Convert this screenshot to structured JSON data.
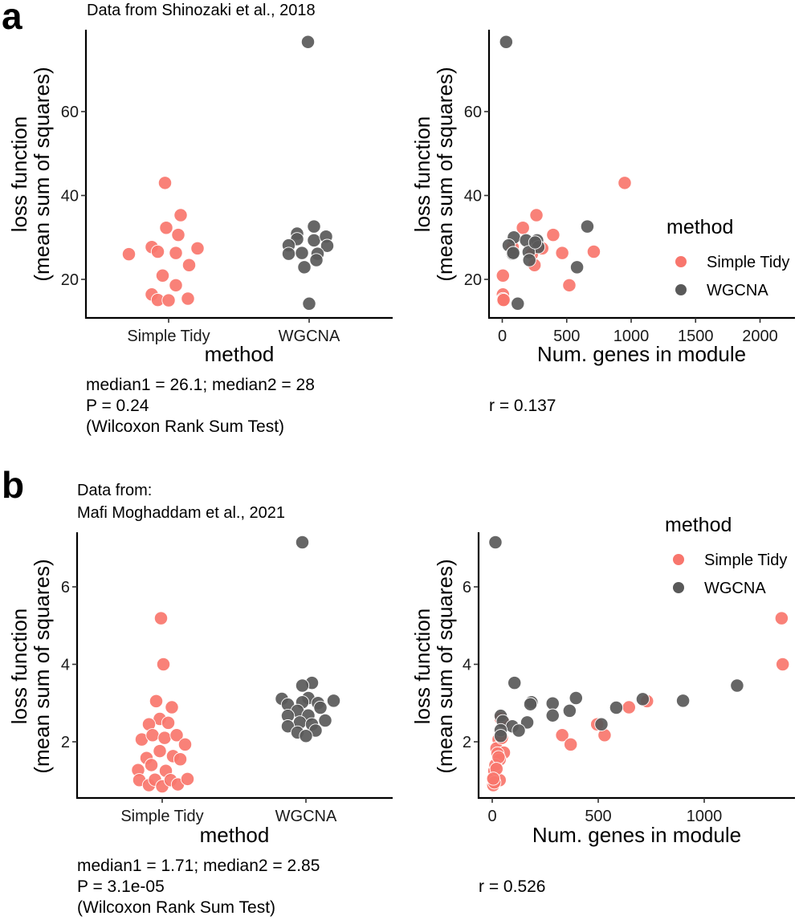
{
  "figure": {
    "panels": [
      {
        "letter": "a",
        "title_lines": [
          "Data from Shinozaki et al., 2018"
        ],
        "strip": {
          "xlabel": "method",
          "ylabel_lines": [
            "loss function",
            "(mean sum of squares)"
          ],
          "annotation_lines": [
            "median1 = 26.1; median2 = 28",
            "P = 0.24",
            "(Wilcoxon Rank Sum Test)"
          ]
        },
        "scatter": {
          "xlabel": "Num. genes in module",
          "ylabel_lines": [
            "loss function",
            "(mean sum of squares)"
          ],
          "annotation_lines": [
            "r = 0.137"
          ]
        },
        "legend": {
          "title": "method",
          "items": [
            "Simple Tidy",
            "WGCNA"
          ]
        }
      },
      {
        "letter": "b",
        "title_lines": [
          "Data from:",
          "Mafi Moghaddam et al., 2021"
        ],
        "strip": {
          "xlabel": "method",
          "ylabel_lines": [
            "loss function",
            "(mean sum of squares)"
          ],
          "annotation_lines": [
            "median1 = 1.71; median2 = 2.85",
            "P = 3.1e-05",
            "(Wilcoxon Rank Sum Test)"
          ]
        },
        "scatter": {
          "xlabel": "Num. genes in module",
          "ylabel_lines": [
            "loss function",
            "(mean sum of squares)"
          ],
          "annotation_lines": [
            "r = 0.526"
          ]
        },
        "legend": {
          "title": "method",
          "items": [
            "Simple Tidy",
            "WGCNA"
          ]
        }
      }
    ]
  },
  "colors": {
    "Simple Tidy": "#F8766D",
    "WGCNA": "#595959"
  },
  "chart_data": [
    {
      "id": "a-strip",
      "type": "scatter",
      "subtype": "jitter-strip",
      "title": "Data from Shinozaki et al., 2018",
      "xlabel": "method",
      "ylabel": "loss function (mean sum of squares)",
      "categories": [
        "Simple Tidy",
        "WGCNA"
      ],
      "yticks": [
        20,
        40,
        60
      ],
      "ylim": [
        11,
        81
      ],
      "grid": false,
      "series": [
        {
          "name": "Simple Tidy",
          "points": [
            {
              "jitter": -0.15,
              "y": 43.0
            },
            {
              "jitter": 0.5,
              "y": 35.3
            },
            {
              "jitter": -0.1,
              "y": 32.3
            },
            {
              "jitter": 0.4,
              "y": 30.6
            },
            {
              "jitter": -0.7,
              "y": 27.7
            },
            {
              "jitter": 1.2,
              "y": 27.4
            },
            {
              "jitter": -1.65,
              "y": 26.0
            },
            {
              "jitter": -0.45,
              "y": 26.6
            },
            {
              "jitter": 0.3,
              "y": 26.3
            },
            {
              "jitter": 0.85,
              "y": 23.4
            },
            {
              "jitter": -0.25,
              "y": 20.9
            },
            {
              "jitter": 0.3,
              "y": 18.6
            },
            {
              "jitter": -0.7,
              "y": 16.4
            },
            {
              "jitter": -0.45,
              "y": 15.1
            },
            {
              "jitter": 0.0,
              "y": 15.0
            },
            {
              "jitter": 0.8,
              "y": 15.4
            }
          ]
        },
        {
          "name": "WGCNA",
          "points": [
            {
              "jitter": -0.05,
              "y": 76.6
            },
            {
              "jitter": 0.2,
              "y": 32.6
            },
            {
              "jitter": -0.5,
              "y": 30.9
            },
            {
              "jitter": -0.5,
              "y": 29.6
            },
            {
              "jitter": 0.2,
              "y": 29.3
            },
            {
              "jitter": 0.7,
              "y": 30.2
            },
            {
              "jitter": -0.85,
              "y": 28.1
            },
            {
              "jitter": 0.75,
              "y": 28.0
            },
            {
              "jitter": -0.85,
              "y": 26.1
            },
            {
              "jitter": -0.3,
              "y": 26.3
            },
            {
              "jitter": 0.35,
              "y": 26.1
            },
            {
              "jitter": 0.3,
              "y": 24.6
            },
            {
              "jitter": -0.2,
              "y": 22.9
            },
            {
              "jitter": 0.0,
              "y": 14.2
            }
          ]
        }
      ]
    },
    {
      "id": "a-scatter",
      "type": "scatter",
      "xlabel": "Num. genes in module",
      "ylabel": "loss function (mean sum of squares)",
      "xticks": [
        0,
        500,
        1000,
        1500,
        2000
      ],
      "yticks": [
        20,
        40,
        60
      ],
      "xlim": [
        -100,
        2300
      ],
      "ylim": [
        11,
        81
      ],
      "grid": false,
      "legend": {
        "title": "method",
        "entries": [
          "Simple Tidy",
          "WGCNA"
        ],
        "position": "right"
      },
      "series": [
        {
          "name": "Simple Tidy",
          "points": [
            [
              950,
              43.0
            ],
            [
              265,
              35.3
            ],
            [
              160,
              32.3
            ],
            [
              395,
              30.6
            ],
            [
              310,
              27.4
            ],
            [
              80,
              27.7
            ],
            [
              710,
              26.6
            ],
            [
              465,
              26.3
            ],
            [
              230,
              26.0
            ],
            [
              250,
              23.4
            ],
            [
              5,
              20.9
            ],
            [
              520,
              18.6
            ],
            [
              5,
              16.4
            ],
            [
              5,
              15.3
            ],
            [
              5,
              15.0
            ],
            [
              10,
              15.1
            ]
          ]
        },
        {
          "name": "WGCNA",
          "points": [
            [
              30,
              76.6
            ],
            [
              660,
              32.6
            ],
            [
              90,
              30.0
            ],
            [
              185,
              29.3
            ],
            [
              270,
              29.3
            ],
            [
              50,
              28.1
            ],
            [
              280,
              27.7
            ],
            [
              80,
              26.1
            ],
            [
              205,
              26.5
            ],
            [
              210,
              24.6
            ],
            [
              580,
              22.9
            ],
            [
              120,
              14.2
            ],
            [
              85,
              26.3
            ],
            [
              255,
              28.8
            ]
          ]
        }
      ]
    },
    {
      "id": "b-strip",
      "type": "scatter",
      "subtype": "jitter-strip",
      "title": "Data from: Mafi Moghaddam et al., 2021",
      "xlabel": "method",
      "ylabel": "loss function (mean sum of squares)",
      "categories": [
        "Simple Tidy",
        "WGCNA"
      ],
      "yticks": [
        2,
        4,
        6
      ],
      "ylim": [
        0.6,
        7.5
      ],
      "grid": false,
      "series": [
        {
          "name": "Simple Tidy",
          "points": [
            {
              "jitter": -0.05,
              "y": 5.19
            },
            {
              "jitter": 0.05,
              "y": 4.0
            },
            {
              "jitter": -0.25,
              "y": 3.05
            },
            {
              "jitter": 0.4,
              "y": 2.89
            },
            {
              "jitter": -0.1,
              "y": 2.59
            },
            {
              "jitter": -0.55,
              "y": 2.45
            },
            {
              "jitter": 0.25,
              "y": 2.49
            },
            {
              "jitter": -0.85,
              "y": 2.06
            },
            {
              "jitter": -0.4,
              "y": 2.17
            },
            {
              "jitter": 0.1,
              "y": 2.1
            },
            {
              "jitter": 0.6,
              "y": 2.17
            },
            {
              "jitter": 0.95,
              "y": 1.93
            },
            {
              "jitter": -0.1,
              "y": 1.76
            },
            {
              "jitter": -0.65,
              "y": 1.58
            },
            {
              "jitter": 0.45,
              "y": 1.63
            },
            {
              "jitter": 0.75,
              "y": 1.55
            },
            {
              "jitter": -0.45,
              "y": 1.4
            },
            {
              "jitter": 0.15,
              "y": 1.25
            },
            {
              "jitter": -1.0,
              "y": 1.27
            },
            {
              "jitter": -0.95,
              "y": 1.01
            },
            {
              "jitter": -0.55,
              "y": 0.88
            },
            {
              "jitter": -0.3,
              "y": 1.02
            },
            {
              "jitter": 0.0,
              "y": 0.85
            },
            {
              "jitter": 0.35,
              "y": 1.01
            },
            {
              "jitter": 0.65,
              "y": 0.9
            },
            {
              "jitter": 1.05,
              "y": 1.04
            }
          ]
        },
        {
          "name": "WGCNA",
          "points": [
            {
              "jitter": -0.15,
              "y": 7.15
            },
            {
              "jitter": 0.25,
              "y": 3.52
            },
            {
              "jitter": -0.15,
              "y": 3.45
            },
            {
              "jitter": -1.0,
              "y": 3.11
            },
            {
              "jitter": 0.1,
              "y": 3.13
            },
            {
              "jitter": -0.15,
              "y": 3.02
            },
            {
              "jitter": 0.5,
              "y": 3.0
            },
            {
              "jitter": 1.15,
              "y": 3.06
            },
            {
              "jitter": -0.75,
              "y": 2.96
            },
            {
              "jitter": 0.6,
              "y": 2.88
            },
            {
              "jitter": -0.35,
              "y": 2.8
            },
            {
              "jitter": 0.1,
              "y": 2.68
            },
            {
              "jitter": -0.75,
              "y": 2.67
            },
            {
              "jitter": 0.8,
              "y": 2.55
            },
            {
              "jitter": -0.25,
              "y": 2.5
            },
            {
              "jitter": 0.25,
              "y": 2.45
            },
            {
              "jitter": -0.75,
              "y": 2.4
            },
            {
              "jitter": 0.4,
              "y": 2.29
            },
            {
              "jitter": -0.35,
              "y": 2.24
            },
            {
              "jitter": 0.0,
              "y": 2.15
            }
          ]
        }
      ]
    },
    {
      "id": "b-scatter",
      "type": "scatter",
      "xlabel": "Num. genes in module",
      "ylabel": "loss function (mean sum of squares)",
      "xticks": [
        0,
        500,
        1000
      ],
      "yticks": [
        2,
        4,
        6
      ],
      "xlim": [
        -60,
        1430
      ],
      "ylim": [
        0.6,
        7.5
      ],
      "grid": false,
      "legend": {
        "title": "method",
        "entries": [
          "Simple Tidy",
          "WGCNA"
        ],
        "position": "top-right"
      },
      "series": [
        {
          "name": "Simple Tidy",
          "points": [
            [
              1365,
              5.19
            ],
            [
              1370,
              4.0
            ],
            [
              730,
              3.05
            ],
            [
              645,
              2.89
            ],
            [
              495,
              2.45
            ],
            [
              530,
              2.17
            ],
            [
              330,
              2.17
            ],
            [
              370,
              1.93
            ],
            [
              40,
              2.6
            ],
            [
              55,
              2.5
            ],
            [
              30,
              2.06
            ],
            [
              45,
              2.1
            ],
            [
              20,
              1.83
            ],
            [
              55,
              1.72
            ],
            [
              25,
              1.7
            ],
            [
              35,
              1.54
            ],
            [
              10,
              1.25
            ],
            [
              5,
              1.02
            ],
            [
              35,
              1.01
            ],
            [
              5,
              0.88
            ],
            [
              15,
              1.4
            ],
            [
              45,
              2.1
            ],
            [
              30,
              1.6
            ],
            [
              20,
              1.3
            ],
            [
              10,
              0.95
            ],
            [
              5,
              1.05
            ]
          ]
        },
        {
          "name": "WGCNA",
          "points": [
            [
              15,
              7.15
            ],
            [
              1155,
              3.45
            ],
            [
              105,
              3.52
            ],
            [
              395,
              3.13
            ],
            [
              710,
              3.1
            ],
            [
              900,
              3.06
            ],
            [
              185,
              3.02
            ],
            [
              180,
              2.97
            ],
            [
              285,
              2.99
            ],
            [
              365,
              2.8
            ],
            [
              585,
              2.88
            ],
            [
              40,
              2.67
            ],
            [
              50,
              2.53
            ],
            [
              285,
              2.68
            ],
            [
              165,
              2.5
            ],
            [
              95,
              2.4
            ],
            [
              125,
              2.29
            ],
            [
              40,
              2.3
            ],
            [
              40,
              2.15
            ],
            [
              515,
              2.45
            ]
          ]
        }
      ]
    }
  ]
}
